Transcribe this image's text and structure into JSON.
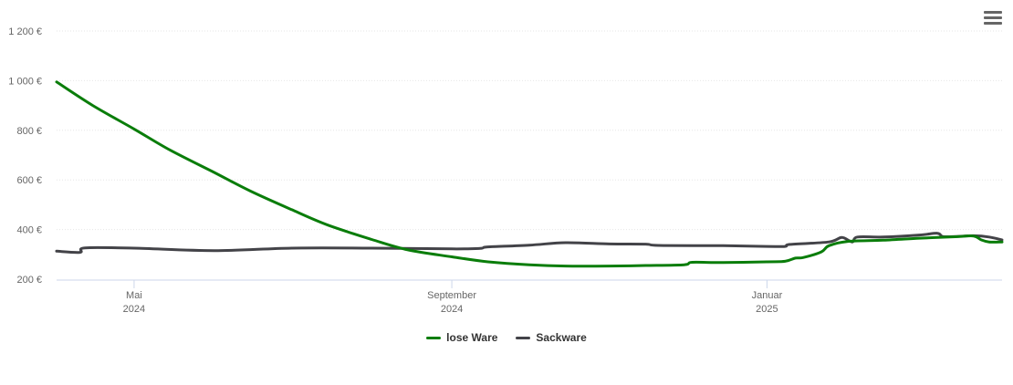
{
  "chart_data": {
    "type": "line",
    "title": "",
    "xlabel": "",
    "ylabel": "",
    "x_range": [
      "2024-04-01",
      "2025-04-02"
    ],
    "ylim": [
      200,
      1200
    ],
    "y_ticks": [
      200,
      400,
      600,
      800,
      1000,
      1200
    ],
    "y_tick_labels": [
      "200 €",
      "400 €",
      "600 €",
      "800 €",
      "1 000 €",
      "1 200 €"
    ],
    "x_ticks": [
      {
        "date": "2024-05-01",
        "line1": "Mai",
        "line2": "2024"
      },
      {
        "date": "2024-09-01",
        "line1": "September",
        "line2": "2024"
      },
      {
        "date": "2025-01-01",
        "line1": "Januar",
        "line2": "2025"
      }
    ],
    "grid": true,
    "legend_position": "bottom-center",
    "series": [
      {
        "name": "lose Ware",
        "color": "#0a7d0a",
        "points": [
          [
            "2024-04-01",
            995
          ],
          [
            "2024-04-15",
            900
          ],
          [
            "2024-05-01",
            805
          ],
          [
            "2024-05-15",
            720
          ],
          [
            "2024-06-01",
            630
          ],
          [
            "2024-06-15",
            555
          ],
          [
            "2024-07-01",
            480
          ],
          [
            "2024-07-15",
            418
          ],
          [
            "2024-08-01",
            360
          ],
          [
            "2024-08-15",
            318
          ],
          [
            "2024-09-01",
            290
          ],
          [
            "2024-09-15",
            270
          ],
          [
            "2024-10-01",
            258
          ],
          [
            "2024-10-15",
            253
          ],
          [
            "2024-11-01",
            253
          ],
          [
            "2024-11-15",
            255
          ],
          [
            "2024-11-30",
            258
          ],
          [
            "2024-12-03",
            268
          ],
          [
            "2024-12-15",
            267
          ],
          [
            "2025-01-01",
            270
          ],
          [
            "2025-01-08",
            272
          ],
          [
            "2025-01-12",
            285
          ],
          [
            "2025-01-15",
            287
          ],
          [
            "2025-01-22",
            310
          ],
          [
            "2025-01-25",
            335
          ],
          [
            "2025-02-01",
            352
          ],
          [
            "2025-02-15",
            357
          ],
          [
            "2025-03-01",
            365
          ],
          [
            "2025-03-15",
            371
          ],
          [
            "2025-03-22",
            374
          ],
          [
            "2025-03-25",
            358
          ],
          [
            "2025-03-28",
            350
          ],
          [
            "2025-04-02",
            350
          ]
        ]
      },
      {
        "name": "Sackware",
        "color": "#434348",
        "points": [
          [
            "2024-04-01",
            313
          ],
          [
            "2024-04-10",
            308
          ],
          [
            "2024-04-12",
            326
          ],
          [
            "2024-05-01",
            325
          ],
          [
            "2024-06-01",
            315
          ],
          [
            "2024-07-01",
            325
          ],
          [
            "2024-08-01",
            325
          ],
          [
            "2024-09-01",
            322
          ],
          [
            "2024-09-12",
            324
          ],
          [
            "2024-09-15",
            330
          ],
          [
            "2024-10-01",
            337
          ],
          [
            "2024-10-15",
            347
          ],
          [
            "2024-11-01",
            342
          ],
          [
            "2024-11-15",
            341
          ],
          [
            "2024-11-20",
            336
          ],
          [
            "2024-12-15",
            335
          ],
          [
            "2025-01-01",
            332
          ],
          [
            "2025-01-08",
            332
          ],
          [
            "2025-01-10",
            340
          ],
          [
            "2025-01-25",
            350
          ],
          [
            "2025-01-30",
            368
          ],
          [
            "2025-02-03",
            350
          ],
          [
            "2025-02-05",
            370
          ],
          [
            "2025-02-15",
            370
          ],
          [
            "2025-03-01",
            378
          ],
          [
            "2025-03-08",
            385
          ],
          [
            "2025-03-10",
            372
          ],
          [
            "2025-03-15",
            372
          ],
          [
            "2025-03-22",
            375
          ],
          [
            "2025-03-28",
            370
          ],
          [
            "2025-04-02",
            358
          ]
        ]
      }
    ]
  },
  "legend": {
    "items": [
      {
        "label": "lose Ware",
        "color": "#0a7d0a"
      },
      {
        "label": "Sackware",
        "color": "#434348"
      }
    ]
  },
  "menu": {
    "icon": "hamburger-menu-icon"
  }
}
